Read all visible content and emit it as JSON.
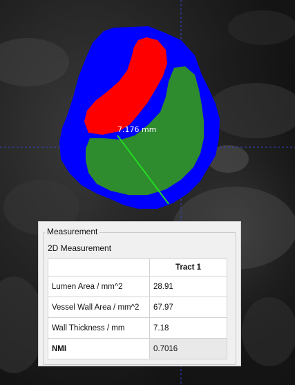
{
  "image_view": {
    "measurement_line_label": "7.176 mm",
    "colors": {
      "wall_outline": "#0000ff",
      "lumen": "#ff0000",
      "plaque": "#2e8b2e",
      "measurement_line": "#22dd22",
      "crosshair": "#3344cc"
    }
  },
  "panel": {
    "group_title": "Measurement",
    "subtitle": "2D Measurement",
    "table": {
      "column_header": "Tract 1",
      "rows": [
        {
          "label": "Lumen Area / mm^2",
          "value": "28.91"
        },
        {
          "label": "Vessel Wall Area / mm^2",
          "value": "67.97"
        },
        {
          "label": "Wall Thickness / mm",
          "value": "7.18"
        },
        {
          "label": "NMI",
          "value": "0.7016"
        }
      ]
    }
  }
}
